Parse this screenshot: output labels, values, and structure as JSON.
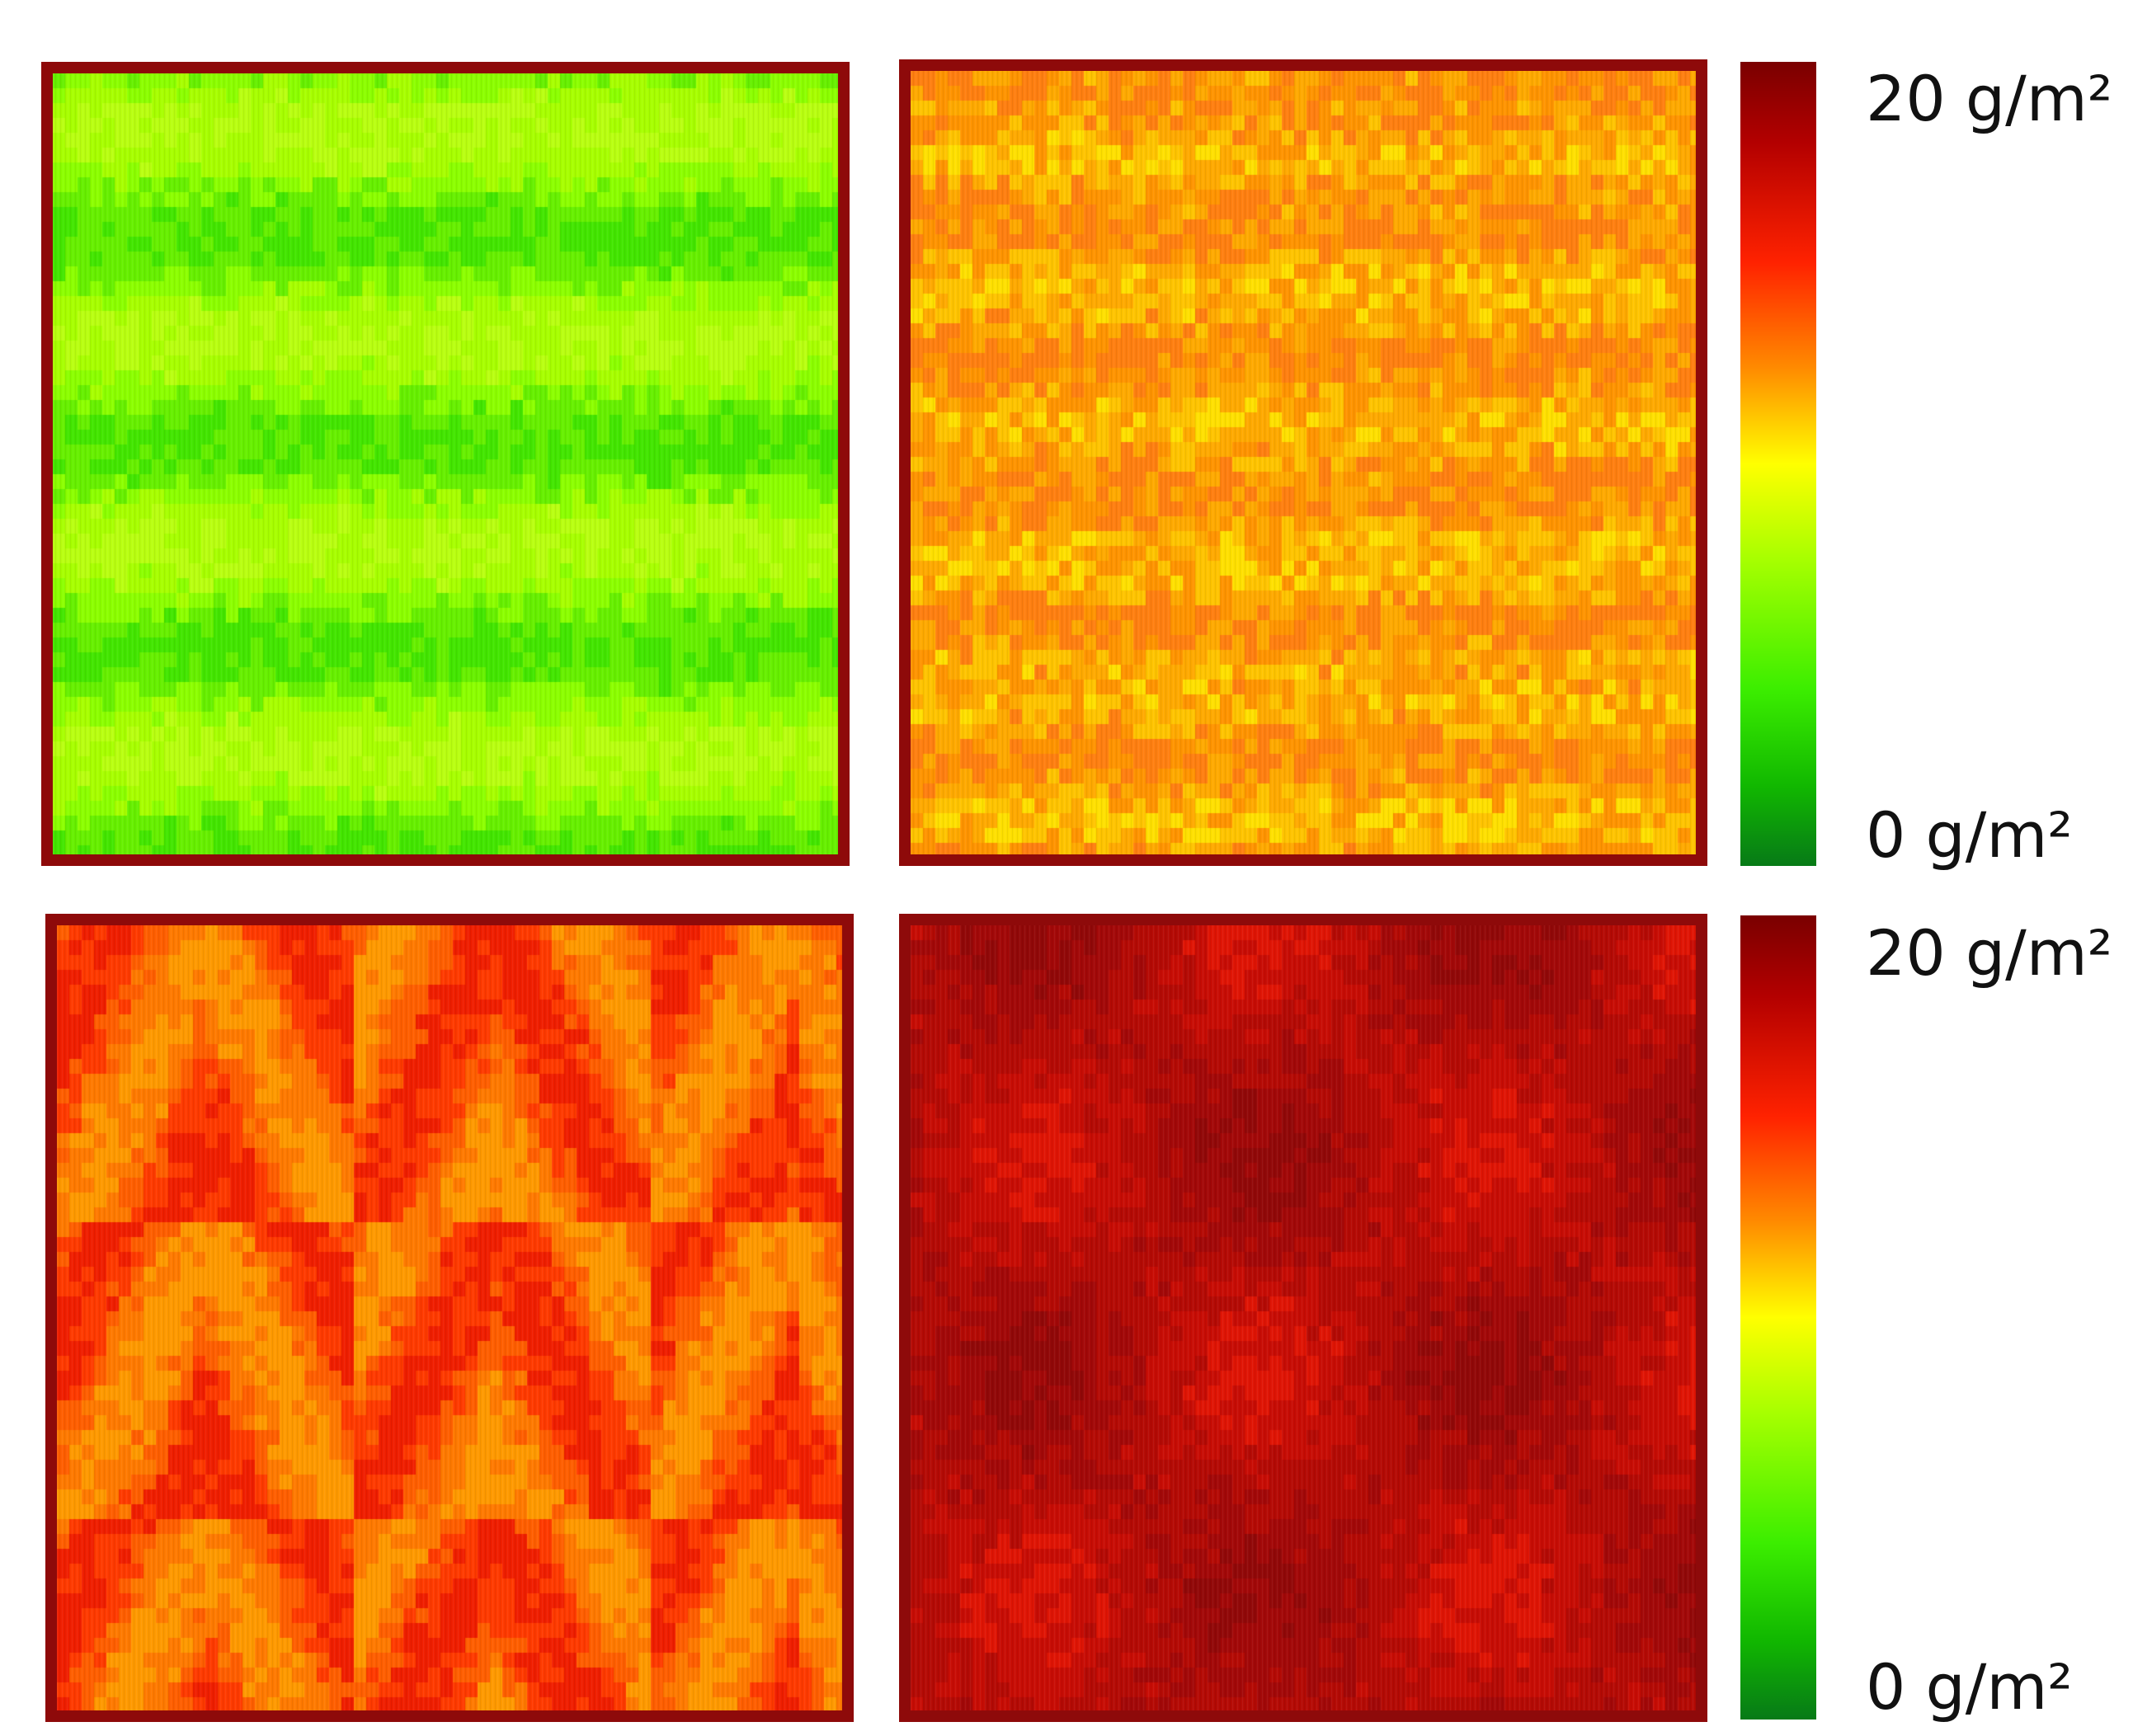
{
  "chart_data": [
    {
      "type": "heatmap",
      "panel": "top-left",
      "scale": [
        0,
        20
      ],
      "unit": "g/m²",
      "mean_value": 6.0,
      "value_range": [
        4.5,
        8.0
      ],
      "pattern": "horizontal-bands",
      "colors": [
        "#43e600",
        "#66f000",
        "#8cff00",
        "#a8ff00",
        "#b9ff11"
      ]
    },
    {
      "type": "heatmap",
      "panel": "top-right",
      "scale": [
        0,
        20
      ],
      "unit": "g/m²",
      "mean_value": 12.5,
      "value_range": [
        10.0,
        14.5
      ],
      "pattern": "mottled",
      "colors": [
        "#ffe000",
        "#ffc400",
        "#ffaa00",
        "#ff9400",
        "#ff7f10"
      ]
    },
    {
      "type": "heatmap",
      "panel": "bottom-left",
      "scale": [
        0,
        20
      ],
      "unit": "g/m²",
      "mean_value": 15.0,
      "value_range": [
        13.0,
        17.0
      ],
      "pattern": "diagonal-stripes",
      "colors": [
        "#ff9a00",
        "#ff7a00",
        "#ff5e00",
        "#ff3a00",
        "#f01e00"
      ]
    },
    {
      "type": "heatmap",
      "panel": "bottom-right",
      "scale": [
        0,
        20
      ],
      "unit": "g/m²",
      "mean_value": 18.5,
      "value_range": [
        17.0,
        20.0
      ],
      "pattern": "patchy",
      "colors": [
        "#e01505",
        "#c80d05",
        "#b50a05",
        "#a30808",
        "#920808"
      ]
    }
  ],
  "colorbars": [
    {
      "max_label": "20 g/m²",
      "min_label": "0 g/m²"
    },
    {
      "max_label": "20 g/m²",
      "min_label": "0 g/m²"
    }
  ],
  "colors": {
    "border": "#8e0a0a",
    "colorbar_top": "#7a0000",
    "colorbar_mid": "#ffff00",
    "colorbar_bottom": "#077a17"
  }
}
